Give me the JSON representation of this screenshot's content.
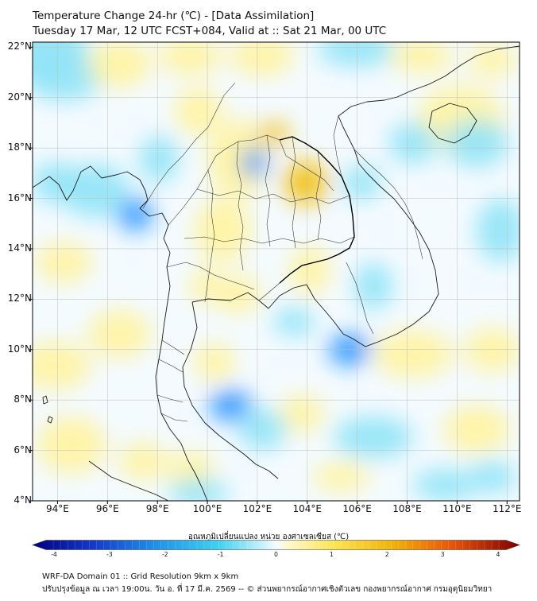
{
  "title": {
    "line1": "Temperature Change 24-hr (℃) - [Data Assimilation]",
    "line2": "Tuesday 17 Mar, 12 UTC FCST+084, Valid at :: Sat 21 Mar, 00 UTC"
  },
  "map": {
    "extent": {
      "lon_min": 93,
      "lon_max": 112.5,
      "lat_min": 4,
      "lat_max": 22.2
    },
    "lat_labels": [
      "22°N",
      "20°N",
      "18°N",
      "16°N",
      "14°N",
      "12°N",
      "10°N",
      "8°N",
      "6°N",
      "4°N"
    ],
    "lon_labels": [
      "94°E",
      "96°E",
      "98°E",
      "100°E",
      "102°E",
      "104°E",
      "106°E",
      "108°E",
      "110°E",
      "112°E"
    ]
  },
  "colorbar": {
    "label": "อุณหภูมิเปลี่ยนแปลง หน่วย องศาเซลเซียส (℃)",
    "min": -4,
    "max": 4,
    "ticks": [
      "-4",
      "-3",
      "-2",
      "-1",
      "0",
      "1",
      "2",
      "3",
      "4"
    ]
  },
  "footer": {
    "line1": "WRF-DA Domain 01 :: Grid Resolution 9km x 9km",
    "line2": "ปรับปรุงข้อมูล ณ เวลา 19:00น. วัน อ. ที่ 17 มี.ค. 2569 -- © ส่วนพยากรณ์อากาศเชิงตัวเลข กองพยากรณ์อากาศ กรมอุตุนิยมวิทยา"
  },
  "colors": {
    "cold_dark": "#00007f",
    "cold_mid": "#1e90ff",
    "cold_light": "#8fe3f7",
    "neutral": "#f7fbff",
    "warm_light": "#fff3a0",
    "warm_mid": "#f2c00f",
    "warm_dark": "#a20000"
  }
}
